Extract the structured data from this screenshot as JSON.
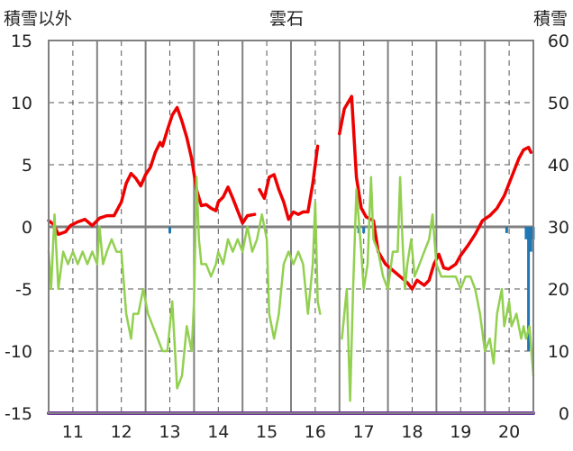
{
  "chart_data": {
    "type": "line",
    "title": "雲石",
    "left_axis_label": "積雪以外",
    "right_axis_label": "積雪",
    "left_axis": {
      "min": -15,
      "max": 15,
      "ticks": [
        15,
        10,
        5,
        0,
        -5,
        -10,
        -15
      ]
    },
    "right_axis": {
      "min": 0,
      "max": 60,
      "ticks": [
        60,
        50,
        40,
        30,
        20,
        10,
        0
      ]
    },
    "x_axis": {
      "min": 10.5,
      "max": 20.5,
      "tick_labels": [
        "11",
        "12",
        "13",
        "14",
        "15",
        "16",
        "17",
        "18",
        "19",
        "20"
      ]
    },
    "grid": true,
    "colors": {
      "red": "#ee0000",
      "green": "#92d050",
      "blue": "#1f77b4",
      "purple": "#7030a0",
      "zero": "#808080",
      "grid": "#555555"
    },
    "series": [
      {
        "color": "red",
        "axis": "left",
        "segments": [
          [
            [
              10.5,
              0.5
            ],
            [
              10.6,
              0.2
            ],
            [
              10.7,
              -0.6
            ],
            [
              10.85,
              -0.4
            ],
            [
              10.95,
              0.1
            ],
            [
              11.1,
              0.4
            ],
            [
              11.25,
              0.6
            ],
            [
              11.4,
              0.1
            ],
            [
              11.55,
              0.7
            ],
            [
              11.7,
              0.9
            ],
            [
              11.85,
              0.9
            ],
            [
              12.0,
              2.0
            ],
            [
              12.1,
              3.5
            ],
            [
              12.2,
              4.3
            ],
            [
              12.3,
              3.9
            ],
            [
              12.4,
              3.3
            ],
            [
              12.5,
              4.2
            ],
            [
              12.6,
              4.8
            ],
            [
              12.7,
              6.0
            ],
            [
              12.8,
              6.8
            ],
            [
              12.85,
              6.5
            ],
            [
              12.95,
              7.8
            ],
            [
              13.05,
              9.0
            ],
            [
              13.15,
              9.6
            ],
            [
              13.25,
              8.5
            ],
            [
              13.35,
              7.2
            ],
            [
              13.45,
              5.5
            ],
            [
              13.55,
              3.0
            ],
            [
              13.65,
              1.7
            ],
            [
              13.75,
              1.8
            ],
            [
              13.85,
              1.5
            ],
            [
              13.95,
              1.3
            ],
            [
              14.0,
              2.0
            ],
            [
              14.1,
              2.4
            ],
            [
              14.2,
              3.2
            ],
            [
              14.3,
              2.3
            ],
            [
              14.4,
              1.3
            ],
            [
              14.5,
              0.3
            ],
            [
              14.6,
              0.9
            ],
            [
              14.75,
              1.0
            ]
          ],
          [
            [
              14.85,
              3.0
            ],
            [
              14.95,
              2.3
            ],
            [
              15.05,
              4.0
            ],
            [
              15.15,
              4.2
            ],
            [
              15.25,
              3.0
            ],
            [
              15.35,
              2.0
            ],
            [
              15.45,
              0.6
            ],
            [
              15.55,
              1.2
            ],
            [
              15.65,
              1.0
            ],
            [
              15.75,
              1.2
            ],
            [
              15.85,
              1.2
            ],
            [
              15.95,
              3.5
            ],
            [
              16.05,
              6.5
            ]
          ],
          [
            [
              16.5,
              7.5
            ],
            [
              16.6,
              9.5
            ],
            [
              16.75,
              10.5
            ],
            [
              16.85,
              4.0
            ],
            [
              16.95,
              1.5
            ],
            [
              17.05,
              0.8
            ],
            [
              17.2,
              0.5
            ],
            [
              17.3,
              -2.0
            ],
            [
              17.45,
              -3.0
            ],
            [
              17.6,
              -3.5
            ],
            [
              17.75,
              -4.0
            ],
            [
              17.9,
              -4.5
            ],
            [
              18.0,
              -5.0
            ],
            [
              18.1,
              -4.3
            ],
            [
              18.25,
              -4.7
            ],
            [
              18.35,
              -4.3
            ],
            [
              18.45,
              -3.0
            ],
            [
              18.55,
              -2.2
            ],
            [
              18.65,
              -3.3
            ],
            [
              18.75,
              -3.4
            ],
            [
              18.9,
              -3.0
            ],
            [
              19.0,
              -2.3
            ],
            [
              19.15,
              -1.5
            ],
            [
              19.3,
              -0.6
            ],
            [
              19.45,
              0.5
            ],
            [
              19.6,
              0.9
            ],
            [
              19.75,
              1.5
            ],
            [
              19.9,
              2.5
            ],
            [
              20.0,
              3.5
            ],
            [
              20.1,
              4.5
            ],
            [
              20.2,
              5.5
            ],
            [
              20.3,
              6.2
            ],
            [
              20.4,
              6.4
            ],
            [
              20.45,
              6.0
            ]
          ]
        ]
      },
      {
        "color": "green",
        "axis": "left",
        "segments": [
          [
            [
              10.5,
              -2.0
            ],
            [
              10.55,
              -5.0
            ],
            [
              10.62,
              1.0
            ],
            [
              10.7,
              -5.0
            ],
            [
              10.8,
              -2.0
            ],
            [
              10.9,
              -3.0
            ],
            [
              11.0,
              -2.0
            ],
            [
              11.1,
              -3.0
            ],
            [
              11.2,
              -2.0
            ],
            [
              11.3,
              -3.0
            ],
            [
              11.4,
              -2.0
            ],
            [
              11.5,
              -3.0
            ],
            [
              11.55,
              0.0
            ],
            [
              11.62,
              -3.0
            ],
            [
              11.7,
              -2.0
            ],
            [
              11.8,
              -1.0
            ],
            [
              11.9,
              -2.0
            ],
            [
              12.0,
              -2.0
            ],
            [
              12.1,
              -7.0
            ],
            [
              12.2,
              -9.0
            ],
            [
              12.25,
              -7.0
            ],
            [
              12.35,
              -7.0
            ],
            [
              12.45,
              -5.0
            ],
            [
              12.55,
              -7.0
            ],
            [
              12.65,
              -8.0
            ],
            [
              12.75,
              -9.0
            ],
            [
              12.85,
              -10.0
            ],
            [
              12.95,
              -10.0
            ],
            [
              13.05,
              -6.0
            ],
            [
              13.15,
              -13.0
            ],
            [
              13.25,
              -12.0
            ],
            [
              13.35,
              -8.0
            ],
            [
              13.45,
              -10.0
            ],
            [
              13.5,
              -6.0
            ],
            [
              13.55,
              4.0
            ],
            [
              13.6,
              -1.0
            ],
            [
              13.65,
              -3.0
            ],
            [
              13.75,
              -3.0
            ],
            [
              13.85,
              -4.0
            ],
            [
              13.95,
              -3.0
            ],
            [
              14.0,
              -2.0
            ],
            [
              14.1,
              -3.0
            ],
            [
              14.2,
              -1.0
            ],
            [
              14.3,
              -2.0
            ],
            [
              14.4,
              -1.0
            ],
            [
              14.5,
              -2.0
            ],
            [
              14.6,
              0.0
            ],
            [
              14.7,
              -2.0
            ],
            [
              14.8,
              -1.0
            ],
            [
              14.9,
              1.0
            ],
            [
              15.0,
              -1.0
            ],
            [
              15.05,
              -7.0
            ],
            [
              15.15,
              -9.0
            ],
            [
              15.25,
              -7.0
            ],
            [
              15.35,
              -3.0
            ],
            [
              15.45,
              -2.0
            ],
            [
              15.55,
              -3.0
            ],
            [
              15.65,
              -2.0
            ],
            [
              15.75,
              -3.0
            ],
            [
              15.85,
              -7.0
            ],
            [
              15.95,
              -3.0
            ],
            [
              16.0,
              2.0
            ],
            [
              16.05,
              -6.0
            ],
            [
              16.1,
              -7.0
            ]
          ],
          [
            [
              16.55,
              -9.0
            ],
            [
              16.65,
              -5.0
            ],
            [
              16.72,
              -14.0
            ],
            [
              16.78,
              -5.0
            ],
            [
              16.85,
              3.0
            ],
            [
              16.95,
              -2.0
            ],
            [
              17.0,
              -5.0
            ],
            [
              17.08,
              -3.0
            ],
            [
              17.15,
              4.0
            ],
            [
              17.2,
              -1.0
            ],
            [
              17.3,
              -2.0
            ],
            [
              17.4,
              -4.0
            ],
            [
              17.5,
              -5.0
            ],
            [
              17.6,
              -2.0
            ],
            [
              17.7,
              -2.0
            ],
            [
              17.75,
              4.0
            ],
            [
              17.8,
              -1.0
            ],
            [
              17.85,
              -5.0
            ],
            [
              17.9,
              -3.0
            ],
            [
              17.98,
              -1.0
            ],
            [
              18.05,
              -4.0
            ],
            [
              18.15,
              -3.0
            ],
            [
              18.25,
              -2.0
            ],
            [
              18.35,
              -1.0
            ],
            [
              18.42,
              1.0
            ],
            [
              18.5,
              -3.0
            ],
            [
              18.6,
              -4.0
            ],
            [
              18.7,
              -4.0
            ],
            [
              18.8,
              -4.0
            ],
            [
              18.9,
              -4.0
            ],
            [
              19.0,
              -5.0
            ],
            [
              19.1,
              -4.0
            ],
            [
              19.2,
              -4.0
            ],
            [
              19.3,
              -5.0
            ],
            [
              19.4,
              -7.0
            ],
            [
              19.5,
              -10.0
            ],
            [
              19.6,
              -9.0
            ],
            [
              19.68,
              -11.0
            ],
            [
              19.75,
              -7.0
            ],
            [
              19.85,
              -5.0
            ],
            [
              19.9,
              -8.0
            ],
            [
              20.0,
              -6.0
            ],
            [
              20.05,
              -8.0
            ],
            [
              20.15,
              -7.0
            ],
            [
              20.25,
              -9.0
            ],
            [
              20.3,
              -8.0
            ],
            [
              20.35,
              -9.0
            ],
            [
              20.42,
              -8.0
            ],
            [
              20.5,
              -12.0
            ]
          ]
        ]
      },
      {
        "color": "blue",
        "axis": "right",
        "bars": [
          [
            13.0,
            29.0
          ],
          [
            16.9,
            29.0
          ],
          [
            17.0,
            29.0
          ],
          [
            19.95,
            29.0
          ],
          [
            20.35,
            28.0
          ],
          [
            20.4,
            10.0
          ],
          [
            20.45,
            26.0
          ],
          [
            20.5,
            28.0
          ]
        ]
      },
      {
        "color": "purple",
        "axis": "left",
        "segments": [
          [
            [
              10.5,
              -15.0
            ],
            [
              20.5,
              -15.0
            ]
          ]
        ]
      }
    ]
  }
}
